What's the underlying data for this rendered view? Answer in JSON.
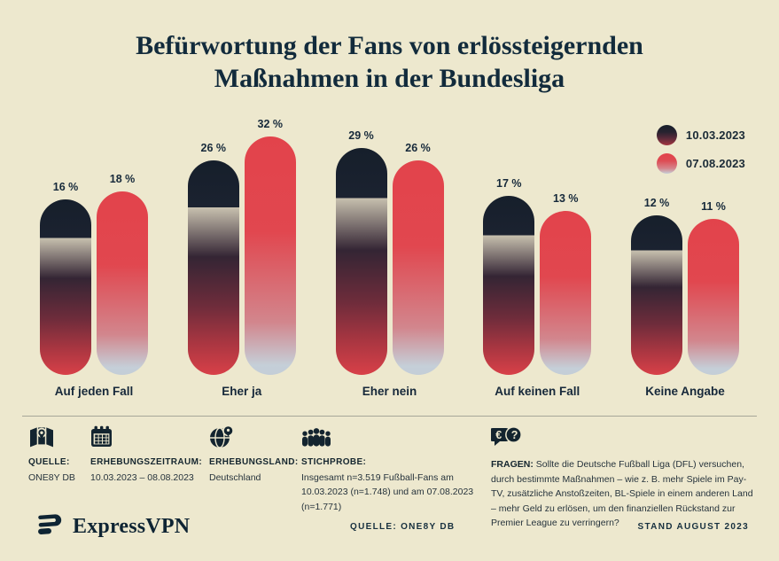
{
  "title": {
    "line1": "Befürwortung der Fans von erlössteigernden",
    "line2": "Maßnahmen in der Bundesliga"
  },
  "legend": [
    {
      "label": "10.03.2023",
      "swatch": "dark-navy-to-red-gradient"
    },
    {
      "label": "07.08.2023",
      "swatch": "red-to-lightgray-gradient"
    }
  ],
  "chart_data": {
    "type": "bar",
    "title": "Befürwortung der Fans von erlössteigernden Maßnahmen in der Bundesliga",
    "categories": [
      "Auf jeden Fall",
      "Eher ja",
      "Eher nein",
      "Auf keinen Fall",
      "Keine Angabe"
    ],
    "series": [
      {
        "name": "10.03.2023",
        "values": [
          16,
          26,
          29,
          17,
          12
        ]
      },
      {
        "name": "07.08.2023",
        "values": [
          18,
          32,
          26,
          13,
          11
        ]
      }
    ],
    "value_suffix": " %",
    "unit": "percent",
    "grid": false,
    "legend_position": "top-right",
    "bar_style": "rounded-pill-gradient",
    "colors": {
      "series1_top": "#161F2B",
      "series1_bottom": "#D84048",
      "series2_top": "#E2434B",
      "series2_bottom": "#C3CDD7",
      "background": "#EDE8CE"
    }
  },
  "info": {
    "source": {
      "icon": "map-pin-icon",
      "label": "QUELLE:",
      "value": "ONE8Y DB"
    },
    "period": {
      "icon": "calendar-icon",
      "label": "ERHEBUNGSZEITRAUM:",
      "value": "10.03.2023 – 08.08.2023"
    },
    "country": {
      "icon": "globe-pin-icon",
      "label": "ERHEBUNGSLAND:",
      "value": "Deutschland"
    },
    "sample": {
      "icon": "people-crowd-icon",
      "label": "STICHPROBE:",
      "value": "Insgesamt n=3.519 Fußball-Fans am 10.03.2023 (n=1.748) und am 07.08.2023 (n=1.771)"
    },
    "question": {
      "icon": "speech-bubbles-question-icon",
      "label": "FRAGEN:",
      "value": "Sollte die Deutsche Fußball Liga (DFL) versuchen, durch bestimmte Maßnahmen – wie z. B. mehr Spiele im Pay-TV, zusätzliche Anstoßzeiten, BL-Spiele in einem anderen Land – mehr Geld zu erlösen, um den finanziellen Rückstand zur Premier League zu verringern?",
      "bubble_glyphs": {
        "euro": "€",
        "question": "?"
      }
    }
  },
  "footer": {
    "brand": "ExpressVPN",
    "source_note": "QUELLE: ONE8Y DB",
    "stand_note": "STAND AUGUST 2023"
  }
}
